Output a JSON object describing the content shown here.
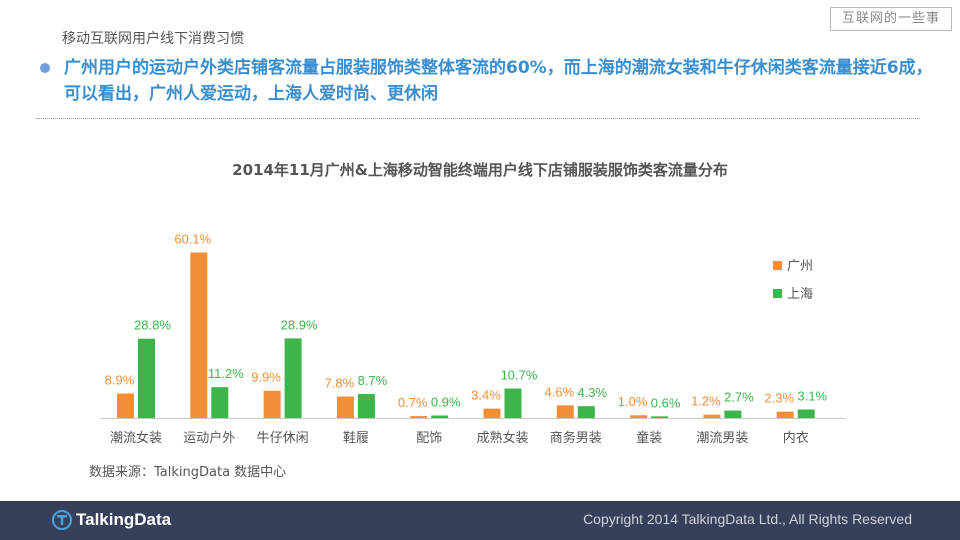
{
  "header": {
    "section_title": "移动互联网用户线下消费习惯",
    "watermark": "互联网的一些事"
  },
  "headline": "广州用户的运动户外类店铺客流量占服装服饰类整体客流的60%，而上海的潮流女装和牛仔休闲类客流量接近6成，可以看出，广州人爱运动，上海人爱时尚、更休闲",
  "chart_data": {
    "type": "bar",
    "title": "2014年11月广州&上海移动智能终端用户线下店铺服装服饰类客流量分布",
    "categories": [
      "潮流女装",
      "运动户外",
      "牛仔休闲",
      "鞋履",
      "配饰",
      "成熟女装",
      "商务男装",
      "童装",
      "潮流男装",
      "内衣"
    ],
    "series": [
      {
        "name": "广州",
        "color": "#f28e36",
        "values": [
          8.9,
          60.1,
          9.9,
          7.8,
          0.7,
          3.4,
          4.6,
          1.0,
          1.2,
          2.3
        ],
        "labels": [
          "8.9%",
          "60.1%",
          "9.9%",
          "7.8%",
          "0.7%",
          "3.4%",
          "4.6%",
          "1.0%",
          "1.2%",
          "2.3%"
        ]
      },
      {
        "name": "上海",
        "color": "#3cb54a",
        "values": [
          28.8,
          11.2,
          28.9,
          8.7,
          0.9,
          10.7,
          4.3,
          0.6,
          2.7,
          3.1
        ],
        "labels": [
          "28.8%",
          "11.2%",
          "28.9%",
          "8.7%",
          "0.9%",
          "10.7%",
          "4.3%",
          "0.6%",
          "2.7%",
          "3.1%"
        ]
      }
    ],
    "ylim": [
      0,
      65
    ],
    "grid": false,
    "legend": "right"
  },
  "source": "数据来源：TalkingData 数据中心",
  "footer": {
    "logo_text": "TalkingData",
    "copyright": "Copyright 2014 TalkingData Ltd., All Rights Reserved"
  }
}
